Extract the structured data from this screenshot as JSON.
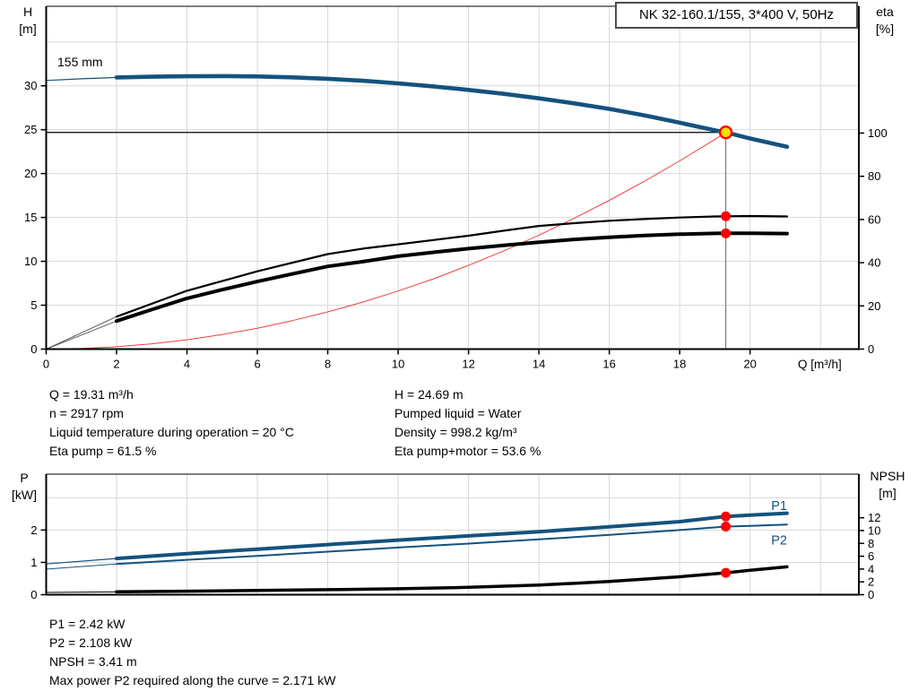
{
  "window": {
    "kind": "pump-performance-panel"
  },
  "colors": {
    "curve_blue": "#14527e",
    "black": "#000000",
    "lead_gray": "#5a5a5a",
    "red": "#ff0000",
    "system_red": "#ef4040",
    "marker_yellow": "#ffdf00",
    "grid": "#d9d9d9",
    "guide_gray": "#808080",
    "axis": "#000000"
  },
  "info": {
    "top_left": [
      "Q = 19.31 m³/h",
      "n = 2917 rpm",
      "Liquid temperature during operation = 20 °C",
      "Eta pump = 61.5 %"
    ],
    "top_right": [
      "H = 24.69 m",
      "Pumped liquid = Water",
      "Density = 998.2 kg/m³",
      "Eta pump+motor = 53.6 %"
    ],
    "bottom": [
      "P1 = 2.42 kW",
      "P2 = 2.108 kW",
      "NPSH = 3.41 m",
      "Max power P2 required along the curve = 2.171 kW"
    ]
  },
  "chart_data": [
    {
      "type": "line",
      "name": "qh-eta-chart",
      "title": "NK 32-160.1/155, 3*400 V, 50Hz",
      "curve_label": "155 mm",
      "x": {
        "label": "Q [m³/h]",
        "min": 0,
        "max": 23.09,
        "grid_step": 2,
        "ticks": [
          0,
          2,
          4,
          6,
          8,
          10,
          12,
          14,
          16,
          18,
          20
        ],
        "show_tick_labels": true
      },
      "y_left": {
        "label": "H\n[m]",
        "min": 0,
        "max": 39.06,
        "grid_step": 5,
        "ticks": [
          0,
          5,
          10,
          15,
          20,
          25,
          30
        ]
      },
      "y_right": {
        "label": "eta\n[%]",
        "min": 0,
        "max": 158.7,
        "ticks": [
          0,
          20,
          40,
          60,
          80,
          100
        ]
      },
      "duty_point": {
        "Q": 19.31,
        "H": 24.69,
        "eta_pump": 61.5,
        "eta_pump_motor": 53.6
      },
      "guides": {
        "h_line_at": 24.69,
        "v_line_at": 19.31
      },
      "series": [
        {
          "name": "qh-curve-lead",
          "axis": "left",
          "color": "curve_blue",
          "width": 1.2,
          "points": [
            [
              0,
              30.6
            ],
            [
              1,
              30.8
            ],
            [
              2,
              30.95
            ]
          ]
        },
        {
          "name": "qh-curve",
          "axis": "left",
          "color": "curve_blue",
          "width": 4.6,
          "points": [
            [
              2,
              30.95
            ],
            [
              3,
              31.03
            ],
            [
              4,
              31.08
            ],
            [
              5,
              31.1
            ],
            [
              6,
              31.06
            ],
            [
              7,
              30.96
            ],
            [
              8,
              30.8
            ],
            [
              9,
              30.57
            ],
            [
              10,
              30.28
            ],
            [
              11,
              29.93
            ],
            [
              12,
              29.53
            ],
            [
              13,
              29.08
            ],
            [
              14,
              28.57
            ],
            [
              15,
              28.0
            ],
            [
              16,
              27.37
            ],
            [
              17,
              26.63
            ],
            [
              18,
              25.8
            ],
            [
              19,
              24.93
            ],
            [
              19.31,
              24.69
            ],
            [
              20,
              24.0
            ],
            [
              21.05,
              23.05
            ]
          ]
        },
        {
          "name": "system-curve",
          "axis": "left",
          "color": "system_red",
          "width": 1,
          "points": [
            [
              0,
              0
            ],
            [
              1,
              0.07
            ],
            [
              2,
              0.27
            ],
            [
              3,
              0.6
            ],
            [
              4,
              1.06
            ],
            [
              5,
              1.66
            ],
            [
              6,
              2.38
            ],
            [
              7,
              3.25
            ],
            [
              8,
              4.24
            ],
            [
              9,
              5.36
            ],
            [
              10,
              6.62
            ],
            [
              11,
              8.01
            ],
            [
              12,
              9.54
            ],
            [
              13,
              11.19
            ],
            [
              14,
              12.98
            ],
            [
              15,
              14.9
            ],
            [
              16,
              16.95
            ],
            [
              17,
              19.13
            ],
            [
              18,
              21.44
            ],
            [
              19,
              23.89
            ],
            [
              19.31,
              24.69
            ]
          ]
        },
        {
          "name": "eta-pump-lead",
          "axis": "right",
          "color": "lead_gray",
          "width": 1,
          "points": [
            [
              0,
              0
            ],
            [
              2,
              15
            ]
          ]
        },
        {
          "name": "eta-pump-curve",
          "axis": "right",
          "color": "black",
          "width": 2.2,
          "points": [
            [
              2,
              15
            ],
            [
              3,
              21
            ],
            [
              4,
              27
            ],
            [
              5,
              31.5
            ],
            [
              6,
              36
            ],
            [
              7,
              40
            ],
            [
              8,
              44
            ],
            [
              9,
              46.5
            ],
            [
              10,
              48.5
            ],
            [
              11,
              50.5
            ],
            [
              12,
              52.5
            ],
            [
              13,
              54.8
            ],
            [
              14,
              57
            ],
            [
              15,
              58.3
            ],
            [
              16,
              59.4
            ],
            [
              17,
              60.2
            ],
            [
              18,
              60.9
            ],
            [
              19,
              61.4
            ],
            [
              19.31,
              61.5
            ],
            [
              20,
              61.6
            ],
            [
              21.05,
              61.4
            ]
          ]
        },
        {
          "name": "eta-pump-motor-lead",
          "axis": "right",
          "color": "lead_gray",
          "width": 1,
          "points": [
            [
              0,
              0
            ],
            [
              2,
              13
            ]
          ]
        },
        {
          "name": "eta-pump-motor-curve",
          "axis": "right",
          "color": "black",
          "width": 4,
          "points": [
            [
              2,
              13
            ],
            [
              3,
              18.3
            ],
            [
              4,
              23.5
            ],
            [
              5,
              27.5
            ],
            [
              6,
              31.3
            ],
            [
              7,
              34.8
            ],
            [
              8,
              38.3
            ],
            [
              9,
              40.5
            ],
            [
              10,
              43
            ],
            [
              11,
              44.8
            ],
            [
              12,
              46.5
            ],
            [
              13,
              48
            ],
            [
              14,
              49.5
            ],
            [
              15,
              50.8
            ],
            [
              16,
              51.8
            ],
            [
              17,
              52.6
            ],
            [
              18,
              53.2
            ],
            [
              19,
              53.55
            ],
            [
              19.31,
              53.6
            ],
            [
              20,
              53.65
            ],
            [
              21.05,
              53.5
            ]
          ]
        }
      ],
      "markers": [
        {
          "type": "duty",
          "axis": "left",
          "x": 19.31,
          "y": 24.69
        },
        {
          "type": "dot",
          "axis": "right",
          "x": 19.31,
          "y": 61.5
        },
        {
          "type": "dot",
          "axis": "right",
          "x": 19.31,
          "y": 53.6
        }
      ]
    },
    {
      "type": "line",
      "name": "power-npsh-chart",
      "x": {
        "label": "",
        "min": 0,
        "max": 23.09,
        "grid_step": 2,
        "ticks": [],
        "show_tick_labels": false
      },
      "y_left": {
        "label": "P\n[kW]",
        "min": 0,
        "max": 3.73,
        "grid_step": 1,
        "ticks": [
          0,
          1,
          2
        ]
      },
      "y_right": {
        "label": "NPSH\n[m]",
        "min": 0,
        "max": 18.8,
        "ticks": [
          0,
          2,
          4,
          6,
          8,
          10,
          12
        ]
      },
      "duty_point": {
        "Q": 19.31,
        "P1": 2.42,
        "P2": 2.108,
        "NPSH": 3.41
      },
      "series": [
        {
          "name": "p1-curve-lead",
          "axis": "left",
          "color": "curve_blue",
          "width": 1.2,
          "points": [
            [
              0,
              0.95
            ],
            [
              2,
              1.12
            ]
          ]
        },
        {
          "name": "p1-curve",
          "axis": "left",
          "color": "curve_blue",
          "width": 4,
          "label": "P1",
          "label_pos": [
            20.6,
            2.62
          ],
          "points": [
            [
              2,
              1.12
            ],
            [
              4,
              1.27
            ],
            [
              6,
              1.41
            ],
            [
              8,
              1.55
            ],
            [
              10,
              1.69
            ],
            [
              12,
              1.82
            ],
            [
              14,
              1.95
            ],
            [
              16,
              2.1
            ],
            [
              18,
              2.26
            ],
            [
              19.31,
              2.42
            ],
            [
              20,
              2.46
            ],
            [
              21.05,
              2.52
            ]
          ]
        },
        {
          "name": "p2-curve-lead",
          "axis": "left",
          "color": "curve_blue",
          "width": 1,
          "points": [
            [
              0,
              0.79
            ],
            [
              2,
              0.95
            ]
          ]
        },
        {
          "name": "p2-curve",
          "axis": "left",
          "color": "curve_blue",
          "width": 2,
          "label": "P2",
          "label_pos": [
            20.6,
            1.55
          ],
          "points": [
            [
              2,
              0.95
            ],
            [
              4,
              1.08
            ],
            [
              6,
              1.2
            ],
            [
              8,
              1.33
            ],
            [
              10,
              1.46
            ],
            [
              12,
              1.58
            ],
            [
              14,
              1.71
            ],
            [
              16,
              1.85
            ],
            [
              18,
              2.0
            ],
            [
              19.31,
              2.108
            ],
            [
              20,
              2.13
            ],
            [
              21.05,
              2.17
            ]
          ]
        },
        {
          "name": "npsh-curve-lead",
          "axis": "right",
          "color": "black",
          "width": 1,
          "points": [
            [
              0,
              0.35
            ],
            [
              2,
              0.45
            ]
          ]
        },
        {
          "name": "npsh-curve",
          "axis": "right",
          "color": "black",
          "width": 3.5,
          "points": [
            [
              2,
              0.45
            ],
            [
              4,
              0.55
            ],
            [
              6,
              0.65
            ],
            [
              8,
              0.78
            ],
            [
              10,
              0.92
            ],
            [
              12,
              1.15
            ],
            [
              14,
              1.5
            ],
            [
              16,
              2.05
            ],
            [
              18,
              2.8
            ],
            [
              19.31,
              3.41
            ],
            [
              20,
              3.8
            ],
            [
              21.05,
              4.35
            ]
          ]
        }
      ],
      "markers": [
        {
          "type": "dot",
          "axis": "left",
          "x": 19.31,
          "y": 2.42
        },
        {
          "type": "dot",
          "axis": "left",
          "x": 19.31,
          "y": 2.108
        },
        {
          "type": "dot",
          "axis": "right",
          "x": 19.31,
          "y": 3.41
        }
      ]
    }
  ]
}
